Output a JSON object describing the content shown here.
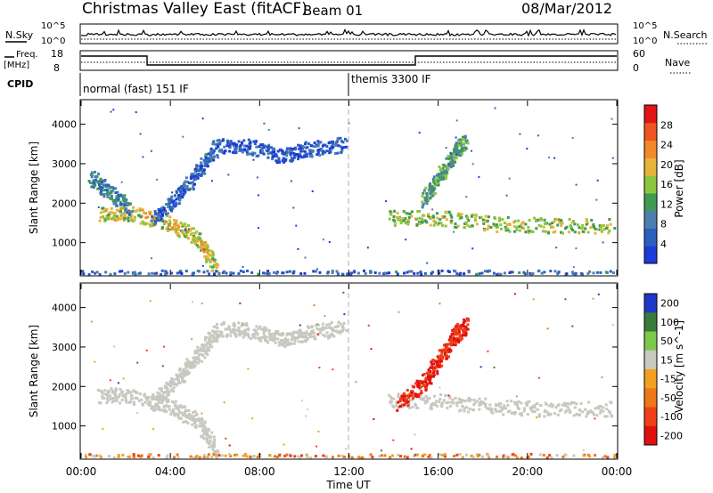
{
  "header": {
    "station": "Christmas Valley East (fitACF)",
    "beam": "Beam 01",
    "date": "08/Mar/2012"
  },
  "aux_panels": {
    "nsky_label": "N.Sky",
    "nsearch_label": "N.Search",
    "nsky_ticks": [
      "10^5",
      "10^0"
    ],
    "nsearch_ticks": [
      "10^5",
      "10^0"
    ],
    "freq_label": "Freq.",
    "freq_unit": "[MHz]",
    "freq_ticks": [
      "18",
      "8"
    ],
    "nave_label": "Nave",
    "nave_ticks": [
      "60",
      "0"
    ],
    "cpid_label": "CPID",
    "cpid_segments": [
      {
        "label": "normal (fast) 151 IF",
        "start_hour": 0
      },
      {
        "label": "themis 3300 IF",
        "start_hour": 12
      }
    ]
  },
  "chart_data": [
    {
      "type": "heatmap",
      "title": "Power",
      "xlabel": "Time UT",
      "ylabel": "Slant Range [km]",
      "xlim": [
        0,
        24
      ],
      "ylim": [
        180,
        4600
      ],
      "x_ticks": [
        "00:00",
        "04:00",
        "08:00",
        "12:00",
        "16:00",
        "20:00",
        "00:00"
      ],
      "y_ticks": [
        1000,
        2000,
        3000,
        4000
      ],
      "colorbar": {
        "label": "Power [dB]",
        "range": [
          0,
          32
        ],
        "ticks": [
          4,
          8,
          12,
          16,
          20,
          24,
          28
        ],
        "colors": [
          "#1e3ad8",
          "#2a5fc0",
          "#4c7fb0",
          "#3f9a52",
          "#8cc63f",
          "#e6b43a",
          "#f08a2a",
          "#ee5522",
          "#e01515"
        ]
      },
      "features": [
        {
          "name": "main echo band",
          "points": [
            [
              0.8,
              1750
            ],
            [
              2.2,
              1750
            ],
            [
              4.0,
              1500
            ],
            [
              5.2,
              1150
            ],
            [
              6.0,
              400
            ]
          ],
          "value_db": 18
        },
        {
          "name": "upper diagonal",
          "points": [
            [
              3.2,
              1600
            ],
            [
              4.3,
              2200
            ],
            [
              5.2,
              2800
            ],
            [
              6.0,
              3400
            ]
          ],
          "value_db": 6
        },
        {
          "name": "early band",
          "points": [
            [
              0.4,
              2700
            ],
            [
              1.2,
              2300
            ],
            [
              2.2,
              1900
            ]
          ],
          "value_db": 9
        },
        {
          "name": "midday arc",
          "points": [
            [
              6.0,
              3500
            ],
            [
              7.5,
              3450
            ],
            [
              9.0,
              3200
            ],
            [
              10.2,
              3400
            ],
            [
              11.8,
              3500
            ]
          ],
          "value_db": 5
        },
        {
          "name": "evening band",
          "points": [
            [
              13.7,
              1650
            ],
            [
              16.0,
              1650
            ],
            [
              18.5,
              1500
            ],
            [
              21.0,
              1450
            ],
            [
              23.8,
              1450
            ]
          ],
          "value_db": 16
        },
        {
          "name": "evening plume",
          "points": [
            [
              15.3,
              2100
            ],
            [
              16.0,
              2700
            ],
            [
              16.7,
              3300
            ],
            [
              17.2,
              3600
            ]
          ],
          "value_db": 12
        },
        {
          "name": "ground scatter floor",
          "points": [
            [
              0,
              250
            ],
            [
              24,
              250
            ]
          ],
          "value_db": 6
        }
      ]
    },
    {
      "type": "heatmap",
      "title": "Velocity",
      "xlabel": "Time UT",
      "ylabel": "Slant Range [km]",
      "xlim": [
        0,
        24
      ],
      "ylim": [
        180,
        4600
      ],
      "x_ticks": [
        "00:00",
        "04:00",
        "08:00",
        "12:00",
        "16:00",
        "20:00",
        "00:00"
      ],
      "y_ticks": [
        1000,
        2000,
        3000,
        4000
      ],
      "colorbar": {
        "label": "Velocity [m s^-1]",
        "range": [
          -250,
          250
        ],
        "ticks": [
          "200",
          "100",
          "50",
          "15",
          "-15",
          "-50",
          "-100",
          "-200"
        ],
        "colors": [
          "#2038c8",
          "#3a7a3a",
          "#7cc84a",
          "#c8c8c0",
          "#f2a020",
          "#f07818",
          "#f04018",
          "#e01010"
        ]
      },
      "features": [
        {
          "name": "main echo band",
          "points": [
            [
              0.8,
              1800
            ],
            [
              2.2,
              1800
            ],
            [
              4.0,
              1500
            ],
            [
              5.2,
              1150
            ],
            [
              6.0,
              400
            ]
          ],
          "value_ms": 0
        },
        {
          "name": "upper diagonal",
          "points": [
            [
              3.2,
              1600
            ],
            [
              4.3,
              2200
            ],
            [
              5.2,
              2800
            ],
            [
              6.0,
              3400
            ]
          ],
          "value_ms": 0
        },
        {
          "name": "midday arc",
          "points": [
            [
              6.0,
              3500
            ],
            [
              7.5,
              3450
            ],
            [
              9.0,
              3200
            ],
            [
              10.2,
              3400
            ],
            [
              11.8,
              3500
            ]
          ],
          "value_ms": 0
        },
        {
          "name": "evening band",
          "points": [
            [
              13.7,
              1650
            ],
            [
              16.0,
              1650
            ],
            [
              18.5,
              1500
            ],
            [
              21.0,
              1450
            ],
            [
              23.8,
              1450
            ]
          ],
          "value_ms": 0
        },
        {
          "name": "evening plume",
          "points": [
            [
              14.2,
              1600
            ],
            [
              15.3,
              2100
            ],
            [
              16.0,
              2700
            ],
            [
              16.7,
              3300
            ],
            [
              17.2,
              3600
            ]
          ],
          "value_ms": -150
        },
        {
          "name": "ground scatter floor",
          "points": [
            [
              0,
              250
            ],
            [
              24,
              250
            ]
          ],
          "value_ms": -40
        }
      ]
    }
  ]
}
